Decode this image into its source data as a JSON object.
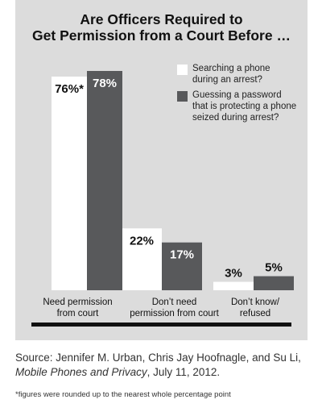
{
  "chart_data": {
    "type": "bar",
    "title": "Are Officers Required to Get Permission from a Court Before …",
    "title_lines": [
      "Are Officers Required to",
      "Get Permission from a Court Before …"
    ],
    "categories": [
      "Need permission from court",
      "Don’t need permission from court",
      "Don’t know/ refused"
    ],
    "category_lines": [
      [
        "Need permission",
        "from court"
      ],
      [
        "Don’t need",
        "permission from court"
      ],
      [
        "Don’t know/",
        "refused"
      ]
    ],
    "series": [
      {
        "name": "Searching a phone during an arrest?",
        "legend_lines": [
          "Searching a phone",
          "during an arrest?"
        ],
        "color": "#ffffff",
        "values": [
          76,
          22,
          3
        ],
        "data_labels": [
          "76%*",
          "22%",
          "3%"
        ],
        "label_color": "#111111"
      },
      {
        "name": "Guessing a password that is protecting a phone seized during arrest?",
        "legend_lines": [
          "Guessing a password",
          "that is protecting a phone",
          "seized during arrest?"
        ],
        "color": "#58595b",
        "values": [
          78,
          17,
          5
        ],
        "data_labels": [
          "78%",
          "17%",
          "5%"
        ],
        "label_color": "#ffffff"
      }
    ],
    "ylim": [
      0,
      78
    ],
    "grid": false,
    "legend_position": "top-right",
    "background": "#dcdcdc"
  },
  "source": {
    "prefix": "Source: Jennifer M. Urban, Chris Jay Hoofnagle, and Su Li, ",
    "title_italic": "Mobile Phones and Privacy",
    "suffix": ", July 11, 2012."
  },
  "footnote": "*figures were rounded up to the nearest whole percentage point"
}
